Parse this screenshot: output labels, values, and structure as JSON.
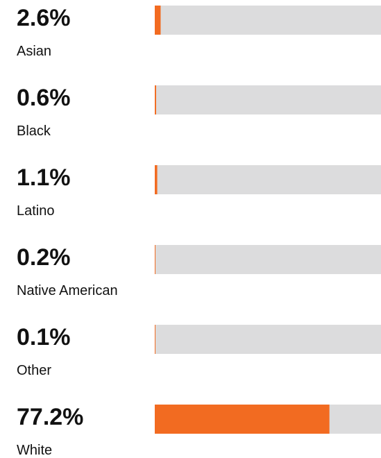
{
  "chart_data": {
    "type": "bar",
    "categories": [
      "Asian",
      "Black",
      "Latino",
      "Native American",
      "Other",
      "White"
    ],
    "values": [
      2.6,
      0.6,
      1.1,
      0.2,
      0.1,
      77.2
    ],
    "value_labels": [
      "2.6%",
      "0.6%",
      "1.1%",
      "0.2%",
      "0.1%",
      "77.2%"
    ],
    "color": "#f26b21",
    "track_color": "#dcdcdd",
    "xlim": [
      0,
      100
    ]
  }
}
